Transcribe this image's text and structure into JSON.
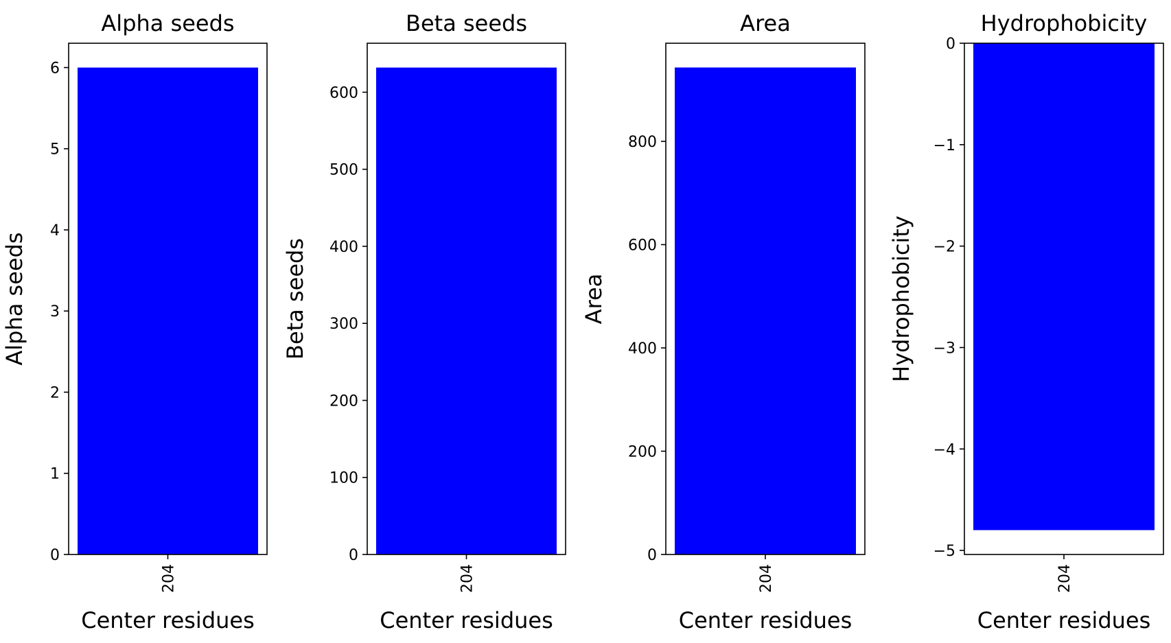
{
  "chart_data": [
    {
      "type": "bar",
      "title": "Alpha seeds",
      "xlabel": "Center residues",
      "ylabel": "Alpha seeds",
      "categories": [
        "204"
      ],
      "values": [
        6
      ],
      "ylim": [
        0,
        6.3
      ],
      "yticks": [
        0,
        1,
        2,
        3,
        4,
        5,
        6
      ],
      "ytick_labels": [
        "0",
        "1",
        "2",
        "3",
        "4",
        "5",
        "6"
      ],
      "color": "#0000ff",
      "grid": false
    },
    {
      "type": "bar",
      "title": "Beta seeds",
      "xlabel": "Center residues",
      "ylabel": "Beta seeds",
      "categories": [
        "204"
      ],
      "values": [
        632
      ],
      "ylim": [
        0,
        663.6
      ],
      "yticks": [
        0,
        100,
        200,
        300,
        400,
        500,
        600
      ],
      "ytick_labels": [
        "0",
        "100",
        "200",
        "300",
        "400",
        "500",
        "600"
      ],
      "color": "#0000ff",
      "grid": false
    },
    {
      "type": "bar",
      "title": "Area",
      "xlabel": "Center residues",
      "ylabel": "Area",
      "categories": [
        "204"
      ],
      "values": [
        943
      ],
      "ylim": [
        0,
        990
      ],
      "yticks": [
        0,
        200,
        400,
        600,
        800
      ],
      "ytick_labels": [
        "0",
        "200",
        "400",
        "600",
        "800"
      ],
      "color": "#0000ff",
      "grid": false
    },
    {
      "type": "bar",
      "title": "Hydrophobicity",
      "xlabel": "Center residues",
      "ylabel": "Hydrophobicity",
      "categories": [
        "204"
      ],
      "values": [
        -4.8
      ],
      "ylim": [
        -5.04,
        0
      ],
      "yticks": [
        0,
        -1,
        -2,
        -3,
        -4,
        -5
      ],
      "ytick_labels": [
        "0",
        "−1",
        "−2",
        "−3",
        "−4",
        "−5"
      ],
      "color": "#0000ff",
      "grid": false
    }
  ]
}
